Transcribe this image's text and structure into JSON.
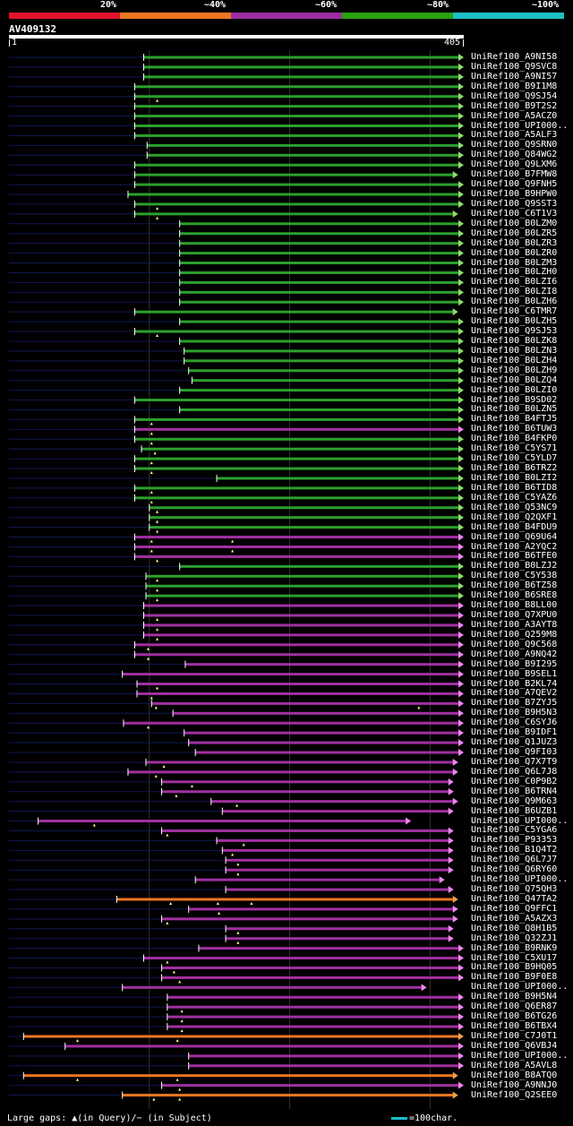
{
  "scale": {
    "labels": [
      "20%",
      "~40%",
      "~60%",
      "~80%",
      "~100%"
    ],
    "colors": [
      "#e3122d",
      "#ee7722",
      "#9b2ea1",
      "#2aa10f",
      "#1fbfc4"
    ]
  },
  "query": {
    "id": "AV409132",
    "start": "1",
    "end": "405"
  },
  "footer": {
    "gaps": "Large gaps: ▲(in Query)/− (in Subject)",
    "scale": "=100char."
  },
  "colors": {
    "green": "#2ca02c",
    "purple": "#a030a0",
    "orange": "#ee7722",
    "pink": "#ee88ee",
    "navy": "#101850",
    "grid": "#333"
  },
  "hits": [
    {
      "label": "UniRef100_A9NI58",
      "color": "green",
      "start": 120,
      "end": 405,
      "fwd": true,
      "q": []
    },
    {
      "label": "UniRef100_Q9SVC8",
      "color": "green",
      "start": 120,
      "end": 405,
      "fwd": true,
      "q": []
    },
    {
      "label": "UniRef100_A9NI57",
      "color": "green",
      "start": 120,
      "end": 405,
      "fwd": true,
      "q": []
    },
    {
      "label": "UniRef100_B9I1M8",
      "color": "green",
      "start": 112,
      "end": 405,
      "fwd": true,
      "q": []
    },
    {
      "label": "UniRef100_Q9SJ54",
      "color": "green",
      "start": 112,
      "end": 405,
      "fwd": true,
      "q": [
        132
      ]
    },
    {
      "label": "UniRef100_B9T2S2",
      "color": "green",
      "start": 112,
      "end": 405,
      "fwd": true,
      "q": []
    },
    {
      "label": "UniRef100_A5ACZ0",
      "color": "green",
      "start": 112,
      "end": 405,
      "fwd": true,
      "q": []
    },
    {
      "label": "UniRef100_UPI000..",
      "color": "green",
      "start": 112,
      "end": 405,
      "fwd": true,
      "q": []
    },
    {
      "label": "UniRef100_A5ALF3",
      "color": "green",
      "start": 112,
      "end": 405,
      "fwd": true,
      "q": []
    },
    {
      "label": "UniRef100_Q9SRN0",
      "color": "green",
      "start": 123,
      "end": 405,
      "fwd": true,
      "q": []
    },
    {
      "label": "UniRef100_Q84WG2",
      "color": "green",
      "start": 123,
      "end": 405,
      "fwd": true,
      "q": []
    },
    {
      "label": "UniRef100_Q9LXM6",
      "color": "green",
      "start": 112,
      "end": 405,
      "fwd": true,
      "q": []
    },
    {
      "label": "UniRef100_B7FMW8",
      "color": "green",
      "start": 112,
      "end": 400,
      "fwd": true,
      "q": []
    },
    {
      "label": "UniRef100_Q9FNH5",
      "color": "green",
      "start": 112,
      "end": 405,
      "fwd": true,
      "q": []
    },
    {
      "label": "UniRef100_B9HPW0",
      "color": "green",
      "start": 106,
      "end": 405,
      "fwd": true,
      "q": []
    },
    {
      "label": "UniRef100_Q9SST3",
      "color": "green",
      "start": 112,
      "end": 405,
      "fwd": true,
      "q": [
        132
      ]
    },
    {
      "label": "UniRef100_C6T1V3",
      "color": "green",
      "start": 112,
      "end": 400,
      "fwd": true,
      "q": [
        132
      ]
    },
    {
      "label": "UniRef100_B0LZM0",
      "color": "green",
      "start": 152,
      "end": 405,
      "fwd": true,
      "q": []
    },
    {
      "label": "UniRef100_B0LZR5",
      "color": "green",
      "start": 152,
      "end": 405,
      "fwd": true,
      "q": []
    },
    {
      "label": "UniRef100_B0LZR3",
      "color": "green",
      "start": 152,
      "end": 405,
      "fwd": true,
      "q": []
    },
    {
      "label": "UniRef100_B0LZR0",
      "color": "green",
      "start": 152,
      "end": 405,
      "fwd": true,
      "q": []
    },
    {
      "label": "UniRef100_B0LZM3",
      "color": "green",
      "start": 152,
      "end": 405,
      "fwd": true,
      "q": []
    },
    {
      "label": "UniRef100_B0LZH0",
      "color": "green",
      "start": 152,
      "end": 405,
      "fwd": true,
      "q": []
    },
    {
      "label": "UniRef100_B0LZI6",
      "color": "green",
      "start": 152,
      "end": 405,
      "fwd": true,
      "q": []
    },
    {
      "label": "UniRef100_B0LZI8",
      "color": "green",
      "start": 152,
      "end": 405,
      "fwd": true,
      "q": []
    },
    {
      "label": "UniRef100_B0LZH6",
      "color": "green",
      "start": 152,
      "end": 405,
      "fwd": true,
      "q": []
    },
    {
      "label": "UniRef100_C6TMR7",
      "color": "green",
      "start": 112,
      "end": 400,
      "fwd": true,
      "q": []
    },
    {
      "label": "UniRef100_B0LZH5",
      "color": "green",
      "start": 152,
      "end": 405,
      "fwd": true,
      "q": []
    },
    {
      "label": "UniRef100_Q9SJ53",
      "color": "green",
      "start": 112,
      "end": 405,
      "fwd": true,
      "q": [
        132
      ]
    },
    {
      "label": "UniRef100_B0LZK8",
      "color": "green",
      "start": 152,
      "end": 405,
      "fwd": true,
      "q": []
    },
    {
      "label": "UniRef100_B0LZN3",
      "color": "green",
      "start": 156,
      "end": 405,
      "fwd": true,
      "q": []
    },
    {
      "label": "UniRef100_B0LZH4",
      "color": "green",
      "start": 156,
      "end": 405,
      "fwd": true,
      "q": []
    },
    {
      "label": "UniRef100_B0LZH9",
      "color": "green",
      "start": 160,
      "end": 405,
      "fwd": true,
      "q": []
    },
    {
      "label": "UniRef100_B0LZQ4",
      "color": "green",
      "start": 163,
      "end": 405,
      "fwd": true,
      "q": []
    },
    {
      "label": "UniRef100_B0LZI0",
      "color": "green",
      "start": 152,
      "end": 405,
      "fwd": true,
      "q": []
    },
    {
      "label": "UniRef100_B9SD02",
      "color": "green",
      "start": 112,
      "end": 405,
      "fwd": true,
      "q": []
    },
    {
      "label": "UniRef100_B0LZN5",
      "color": "green",
      "start": 152,
      "end": 405,
      "fwd": true,
      "q": []
    },
    {
      "label": "UniRef100_B4FTJ5",
      "color": "green",
      "start": 112,
      "end": 405,
      "fwd": true,
      "q": [
        127
      ]
    },
    {
      "label": "UniRef100_B6TUW3",
      "color": "purple",
      "start": 112,
      "end": 405,
      "fwd": true,
      "q": [
        127
      ]
    },
    {
      "label": "UniRef100_B4FKP0",
      "color": "green",
      "start": 112,
      "end": 405,
      "fwd": true,
      "q": [
        127
      ]
    },
    {
      "label": "UniRef100_C5YS71",
      "color": "green",
      "start": 118,
      "end": 405,
      "fwd": true,
      "q": [
        130
      ]
    },
    {
      "label": "UniRef100_C5YLD7",
      "color": "green",
      "start": 112,
      "end": 405,
      "fwd": true,
      "q": [
        127
      ]
    },
    {
      "label": "UniRef100_B6TRZ2",
      "color": "green",
      "start": 112,
      "end": 405,
      "fwd": true,
      "q": [
        127
      ]
    },
    {
      "label": "UniRef100_B0LZI2",
      "color": "green",
      "start": 185,
      "end": 405,
      "fwd": true,
      "q": []
    },
    {
      "label": "UniRef100_B6TID8",
      "color": "green",
      "start": 112,
      "end": 405,
      "fwd": true,
      "q": [
        127
      ]
    },
    {
      "label": "UniRef100_C5YAZ6",
      "color": "green",
      "start": 112,
      "end": 405,
      "fwd": true,
      "q": [
        127
      ]
    },
    {
      "label": "UniRef100_Q53NC9",
      "color": "green",
      "start": 125,
      "end": 405,
      "fwd": true,
      "q": [
        132
      ]
    },
    {
      "label": "UniRef100_Q2QXF1",
      "color": "green",
      "start": 125,
      "end": 405,
      "fwd": true,
      "q": [
        132
      ]
    },
    {
      "label": "UniRef100_B4FDU9",
      "color": "green",
      "start": 125,
      "end": 405,
      "fwd": true,
      "q": [
        132
      ]
    },
    {
      "label": "UniRef100_Q69U64",
      "color": "purple",
      "start": 112,
      "end": 405,
      "fwd": true,
      "q": [
        127,
        199
      ]
    },
    {
      "label": "UniRef100_A2YQC2",
      "color": "purple",
      "start": 112,
      "end": 405,
      "fwd": true,
      "q": [
        127,
        199
      ]
    },
    {
      "label": "UniRef100_B6TFE0",
      "color": "purple",
      "start": 112,
      "end": 405,
      "fwd": true,
      "q": [
        132
      ]
    },
    {
      "label": "UniRef100_B0LZJ2",
      "color": "green",
      "start": 152,
      "end": 405,
      "fwd": true,
      "q": []
    },
    {
      "label": "UniRef100_C5Y538",
      "color": "green",
      "start": 122,
      "end": 405,
      "fwd": true,
      "q": [
        132
      ]
    },
    {
      "label": "UniRef100_B6TZ58",
      "color": "green",
      "start": 122,
      "end": 405,
      "fwd": true,
      "q": [
        132
      ]
    },
    {
      "label": "UniRef100_B6SRE8",
      "color": "green",
      "start": 122,
      "end": 405,
      "fwd": true,
      "q": [
        132
      ]
    },
    {
      "label": "UniRef100_B8LL00",
      "color": "purple",
      "start": 120,
      "end": 405,
      "fwd": true,
      "q": []
    },
    {
      "label": "UniRef100_Q7XPU0",
      "color": "purple",
      "start": 120,
      "end": 405,
      "fwd": true,
      "q": [
        132
      ]
    },
    {
      "label": "UniRef100_A3AYT8",
      "color": "purple",
      "start": 120,
      "end": 405,
      "fwd": true,
      "q": [
        132
      ]
    },
    {
      "label": "UniRef100_Q259M8",
      "color": "purple",
      "start": 120,
      "end": 405,
      "fwd": true,
      "q": [
        132
      ]
    },
    {
      "label": "UniRef100_Q9C568",
      "color": "purple",
      "start": 112,
      "end": 405,
      "fwd": true,
      "q": [
        124
      ]
    },
    {
      "label": "UniRef100_A9NQ42",
      "color": "purple",
      "start": 112,
      "end": 405,
      "fwd": true,
      "q": [
        124
      ]
    },
    {
      "label": "UniRef100_B9I295",
      "color": "purple",
      "start": 157,
      "end": 405,
      "fwd": true,
      "q": []
    },
    {
      "label": "UniRef100_B9SEL1",
      "color": "purple",
      "start": 101,
      "end": 405,
      "fwd": true,
      "q": []
    },
    {
      "label": "UniRef100_B2KL74",
      "color": "purple",
      "start": 114,
      "end": 405,
      "fwd": true,
      "q": [
        132
      ]
    },
    {
      "label": "UniRef100_A7QEV2",
      "color": "purple",
      "start": 114,
      "end": 405,
      "fwd": true,
      "q": [
        127
      ]
    },
    {
      "label": "UniRef100_B7ZYJ5",
      "color": "purple",
      "start": 127,
      "end": 405,
      "fwd": true,
      "q": [
        131,
        365
      ]
    },
    {
      "label": "UniRef100_B9H5N3",
      "color": "purple",
      "start": 146,
      "end": 405,
      "fwd": true,
      "q": []
    },
    {
      "label": "UniRef100_C6SYJ6",
      "color": "purple",
      "start": 102,
      "end": 405,
      "fwd": true,
      "q": [
        124
      ]
    },
    {
      "label": "UniRef100_B9IDF1",
      "color": "purple",
      "start": 156,
      "end": 405,
      "fwd": true,
      "q": []
    },
    {
      "label": "UniRef100_Q1JUZ3",
      "color": "purple",
      "start": 160,
      "end": 405,
      "fwd": true,
      "q": []
    },
    {
      "label": "UniRef100_Q9FI03",
      "color": "purple",
      "start": 166,
      "end": 405,
      "fwd": true,
      "q": []
    },
    {
      "label": "UniRef100_Q7X7T9",
      "color": "purple",
      "start": 122,
      "end": 400,
      "fwd": true,
      "q": [
        138
      ]
    },
    {
      "label": "UniRef100_Q6L7J8",
      "color": "purple",
      "start": 106,
      "end": 400,
      "fwd": true,
      "q": [
        131
      ]
    },
    {
      "label": "UniRef100_C0P9B2",
      "color": "purple",
      "start": 136,
      "end": 396,
      "fwd": true,
      "q": [
        163
      ]
    },
    {
      "label": "UniRef100_B6TRN4",
      "color": "purple",
      "start": 136,
      "end": 396,
      "fwd": true,
      "q": [
        149
      ]
    },
    {
      "label": "UniRef100_Q9M663",
      "color": "purple",
      "start": 180,
      "end": 400,
      "fwd": true,
      "q": [
        203
      ]
    },
    {
      "label": "UniRef100_B6UZB1",
      "color": "purple",
      "start": 190,
      "end": 396,
      "fwd": true,
      "q": []
    },
    {
      "label": "UniRef100_UPI000..",
      "color": "purple",
      "start": 26,
      "end": 358,
      "fwd": true,
      "q": [
        76
      ]
    },
    {
      "label": "UniRef100_C5YGA6",
      "color": "purple",
      "start": 136,
      "end": 396,
      "fwd": true,
      "q": [
        141
      ]
    },
    {
      "label": "UniRef100_P93353",
      "color": "purple",
      "start": 185,
      "end": 396,
      "fwd": true,
      "q": [
        209
      ]
    },
    {
      "label": "UniRef100_B1Q4T2",
      "color": "purple",
      "start": 190,
      "end": 396,
      "fwd": true,
      "q": [
        199
      ]
    },
    {
      "label": "UniRef100_Q6L7J7",
      "color": "purple",
      "start": 193,
      "end": 396,
      "fwd": true,
      "q": [
        204
      ]
    },
    {
      "label": "UniRef100_Q6RY60",
      "color": "purple",
      "start": 193,
      "end": 396,
      "fwd": true,
      "q": [
        204
      ]
    },
    {
      "label": "UniRef100_UPI000..",
      "color": "purple",
      "start": 166,
      "end": 388,
      "fwd": true,
      "q": []
    },
    {
      "label": "UniRef100_Q75QH3",
      "color": "purple",
      "start": 193,
      "end": 396,
      "fwd": true,
      "q": []
    },
    {
      "label": "UniRef100_Q47TA2",
      "color": "orange",
      "start": 96,
      "end": 400,
      "fwd": true,
      "q": [
        144,
        186,
        216
      ]
    },
    {
      "label": "UniRef100_Q9FFC1",
      "color": "purple",
      "start": 160,
      "end": 400,
      "fwd": true,
      "q": [
        187
      ]
    },
    {
      "label": "UniRef100_A5AZX3",
      "color": "purple",
      "start": 136,
      "end": 400,
      "fwd": true,
      "q": [
        141
      ]
    },
    {
      "label": "UniRef100_Q8H1B5",
      "color": "purple",
      "start": 193,
      "end": 396,
      "fwd": true,
      "q": [
        204
      ]
    },
    {
      "label": "UniRef100_Q32ZJ1",
      "color": "purple",
      "start": 193,
      "end": 396,
      "fwd": true,
      "q": [
        204
      ]
    },
    {
      "label": "UniRef100_B9RNK9",
      "color": "purple",
      "start": 169,
      "end": 405,
      "fwd": true,
      "q": []
    },
    {
      "label": "UniRef100_C5XU17",
      "color": "purple",
      "start": 120,
      "end": 405,
      "fwd": true,
      "q": [
        141
      ]
    },
    {
      "label": "UniRef100_B9HQ05",
      "color": "purple",
      "start": 136,
      "end": 405,
      "fwd": true,
      "q": [
        147
      ]
    },
    {
      "label": "UniRef100_B9F0E8",
      "color": "purple",
      "start": 136,
      "end": 405,
      "fwd": true,
      "q": [
        152
      ]
    },
    {
      "label": "UniRef100_UPI000..",
      "color": "purple",
      "start": 101,
      "end": 372,
      "fwd": true,
      "q": []
    },
    {
      "label": "UniRef100_B9H5N4",
      "color": "purple",
      "start": 141,
      "end": 405,
      "fwd": true,
      "q": []
    },
    {
      "label": "UniRef100_Q6ER87",
      "color": "purple",
      "start": 141,
      "end": 405,
      "fwd": true,
      "q": [
        154
      ]
    },
    {
      "label": "UniRef100_B6TG26",
      "color": "purple",
      "start": 141,
      "end": 405,
      "fwd": true,
      "q": [
        154
      ]
    },
    {
      "label": "UniRef100_B6TBX4",
      "color": "purple",
      "start": 141,
      "end": 405,
      "fwd": true,
      "q": [
        154
      ]
    },
    {
      "label": "UniRef100_C7J0T1",
      "color": "orange",
      "start": 13,
      "end": 405,
      "fwd": true,
      "q": [
        61,
        150
      ]
    },
    {
      "label": "UniRef100_Q6VBJ4",
      "color": "purple",
      "start": 50,
      "end": 405,
      "fwd": true,
      "q": []
    },
    {
      "label": "UniRef100_UPI000..",
      "color": "purple",
      "start": 160,
      "end": 405,
      "fwd": true,
      "q": []
    },
    {
      "label": "UniRef100_A5AVL8",
      "color": "purple",
      "start": 160,
      "end": 405,
      "fwd": true,
      "q": []
    },
    {
      "label": "UniRef100_B8ATQ0",
      "color": "orange",
      "start": 13,
      "end": 400,
      "fwd": true,
      "q": [
        61,
        150
      ]
    },
    {
      "label": "UniRef100_A9NNJ0",
      "color": "purple",
      "start": 136,
      "end": 405,
      "fwd": true,
      "q": [
        152
      ]
    },
    {
      "label": "UniRef100_Q2SEE0",
      "color": "orange",
      "start": 101,
      "end": 400,
      "fwd": true,
      "q": [
        129,
        152
      ]
    }
  ]
}
